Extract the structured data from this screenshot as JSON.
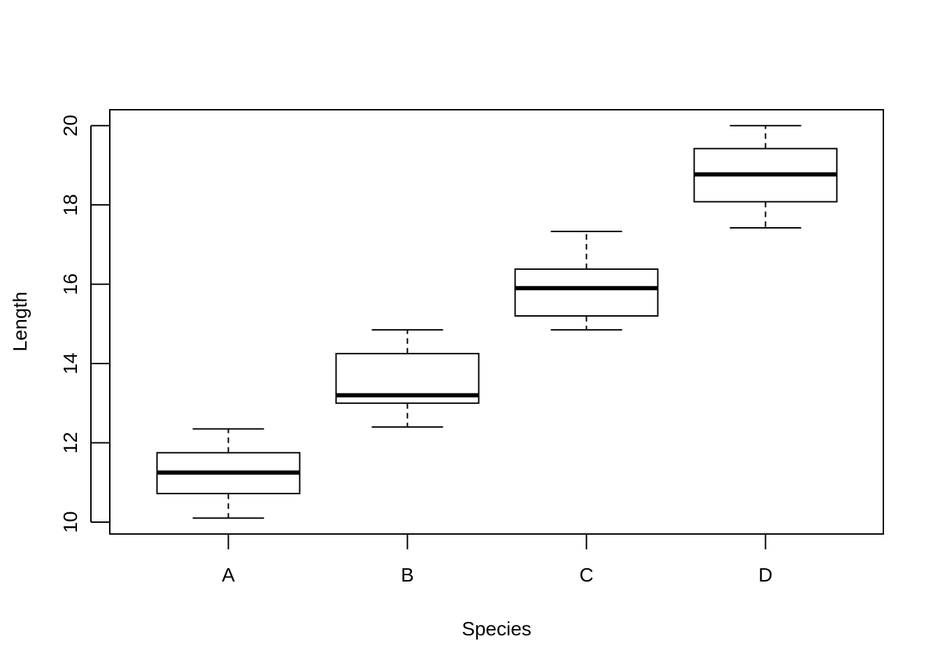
{
  "chart_data": {
    "type": "box",
    "title": "",
    "xlabel": "Species",
    "ylabel": "Length",
    "ylim": [
      9.7,
      20.4
    ],
    "yticks": [
      10,
      12,
      14,
      16,
      18,
      20
    ],
    "categories": [
      "A",
      "B",
      "C",
      "D"
    ],
    "boxes": [
      {
        "category": "A",
        "whisker_low": 10.1,
        "q1": 10.72,
        "median": 11.25,
        "q3": 11.75,
        "whisker_high": 12.35
      },
      {
        "category": "B",
        "whisker_low": 12.4,
        "q1": 13.0,
        "median": 13.2,
        "q3": 14.25,
        "whisker_high": 14.85
      },
      {
        "category": "C",
        "whisker_low": 14.85,
        "q1": 15.2,
        "median": 15.9,
        "q3": 16.38,
        "whisker_high": 17.33
      },
      {
        "category": "D",
        "whisker_low": 17.42,
        "q1": 18.08,
        "median": 18.77,
        "q3": 19.42,
        "whisker_high": 20.0
      }
    ],
    "grid": false,
    "legend": "none"
  }
}
